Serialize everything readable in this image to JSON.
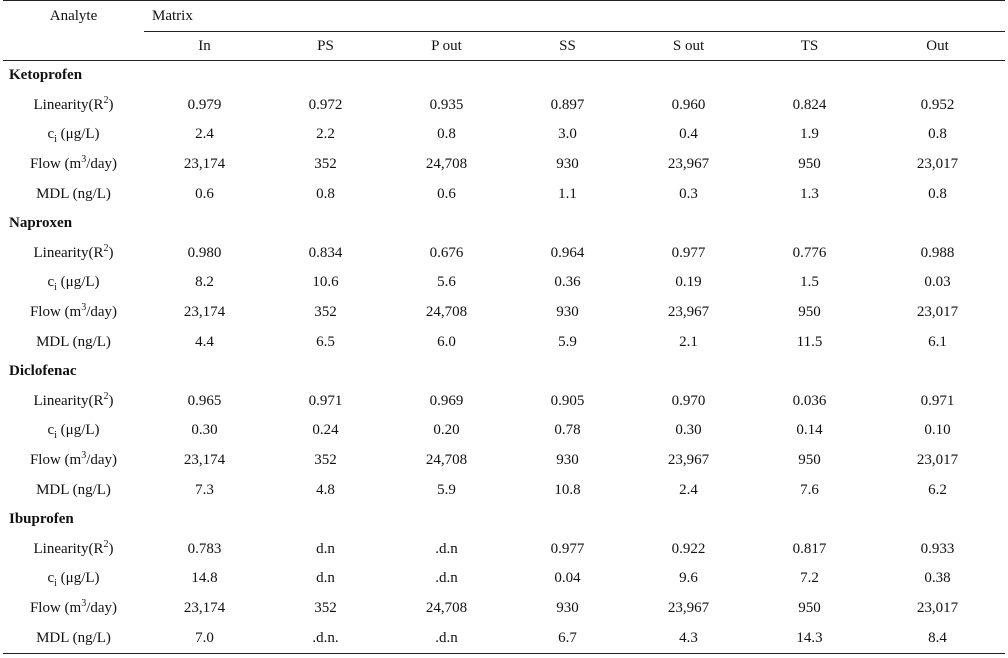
{
  "header": {
    "analyte": "Analyte",
    "matrix": "Matrix",
    "columns": [
      "In",
      "PS",
      "P out",
      "SS",
      "S out",
      "TS",
      "Out"
    ]
  },
  "labels": {
    "linearity_prefix": "Linearity(R",
    "linearity_sup": "2",
    "linearity_suffix": ")",
    "ci_prefix": "c",
    "ci_sub": "i",
    "ci_suffix": " (μg/L)",
    "flow_prefix": "Flow (m",
    "flow_sup": "3",
    "flow_suffix": "/day)",
    "mdl": "MDL (ng/L)"
  },
  "groups": [
    {
      "name": "Ketoprofen",
      "linearity": [
        "0.979",
        "0.972",
        "0.935",
        "0.897",
        "0.960",
        "0.824",
        "0.952"
      ],
      "ci": [
        "2.4",
        "2.2",
        "0.8",
        "3.0",
        "0.4",
        "1.9",
        "0.8"
      ],
      "flow": [
        "23,174",
        "352",
        "24,708",
        "930",
        "23,967",
        "950",
        "23,017"
      ],
      "mdl": [
        "0.6",
        "0.8",
        "0.6",
        "1.1",
        "0.3",
        "1.3",
        "0.8"
      ]
    },
    {
      "name": "Naproxen",
      "linearity": [
        "0.980",
        "0.834",
        "0.676",
        "0.964",
        "0.977",
        "0.776",
        "0.988"
      ],
      "ci": [
        "8.2",
        "10.6",
        "5.6",
        "0.36",
        "0.19",
        "1.5",
        "0.03"
      ],
      "flow": [
        "23,174",
        "352",
        "24,708",
        "930",
        "23,967",
        "950",
        "23,017"
      ],
      "mdl": [
        "4.4",
        "6.5",
        "6.0",
        "5.9",
        "2.1",
        "11.5",
        "6.1"
      ]
    },
    {
      "name": "Diclofenac",
      "linearity": [
        "0.965",
        "0.971",
        "0.969",
        "0.905",
        "0.970",
        "0.036",
        "0.971"
      ],
      "ci": [
        "0.30",
        "0.24",
        "0.20",
        "0.78",
        "0.30",
        "0.14",
        "0.10"
      ],
      "flow": [
        "23,174",
        "352",
        "24,708",
        "930",
        "23,967",
        "950",
        "23,017"
      ],
      "mdl": [
        "7.3",
        "4.8",
        "5.9",
        "10.8",
        "2.4",
        "7.6",
        "6.2"
      ]
    },
    {
      "name": "Ibuprofen",
      "linearity": [
        "0.783",
        "d.n",
        ".d.n",
        "0.977",
        "0.922",
        "0.817",
        "0.933"
      ],
      "ci": [
        "14.8",
        "d.n",
        ".d.n",
        "0.04",
        "9.6",
        "7.2",
        "0.38"
      ],
      "flow": [
        "23,174",
        "352",
        "24,708",
        "930",
        "23,967",
        "950",
        "23,017"
      ],
      "mdl": [
        "7.0",
        ".d.n.",
        ".d.n",
        "6.7",
        "4.3",
        "14.3",
        "8.4"
      ]
    }
  ]
}
